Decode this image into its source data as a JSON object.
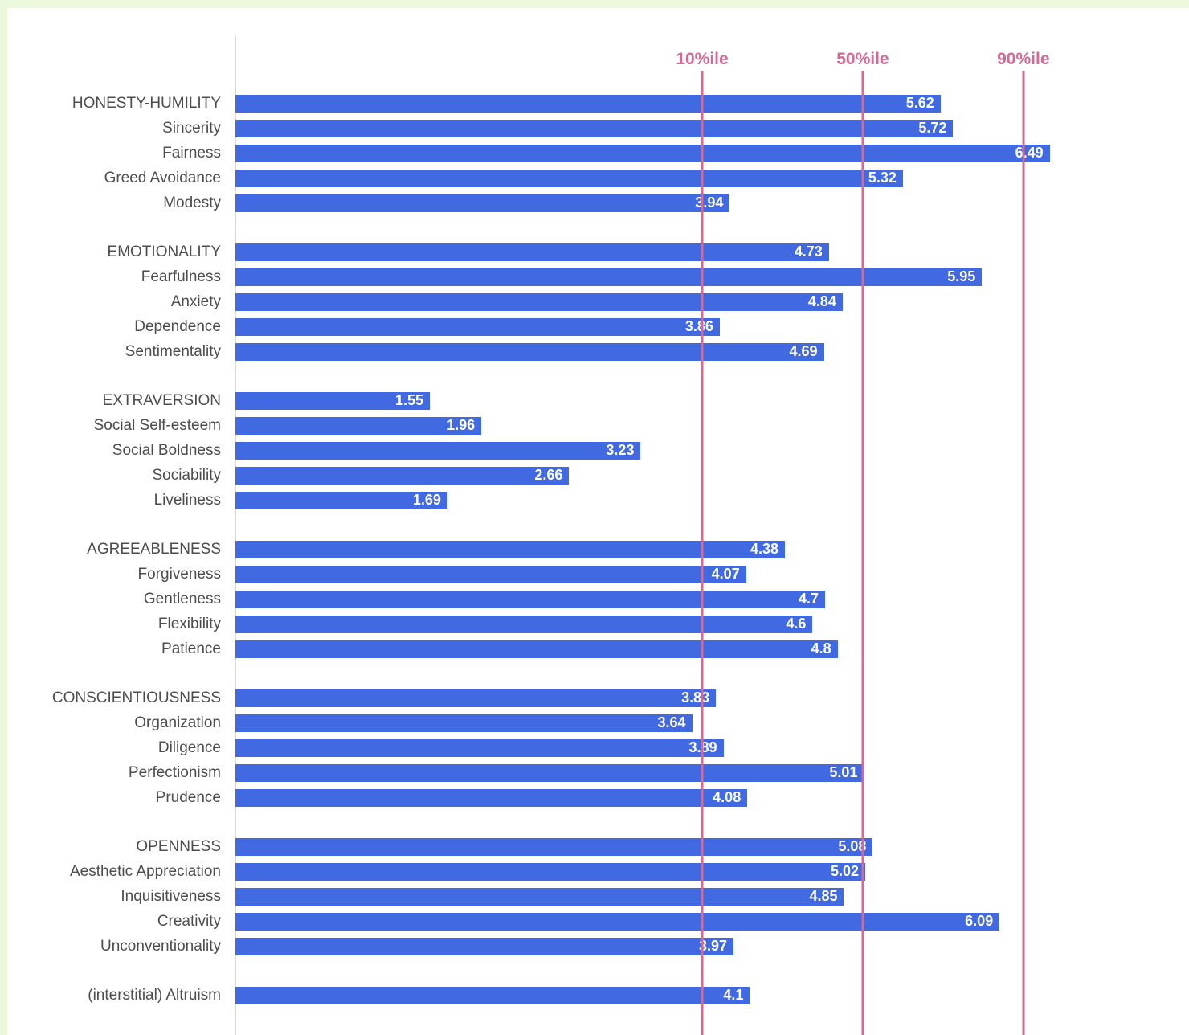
{
  "page": {
    "border_color": "#ecf8dc"
  },
  "chart_data": {
    "type": "bar",
    "orientation": "horizontal",
    "title": "",
    "xlabel": "",
    "ylabel": "",
    "xlim": [
      0,
      7.6
    ],
    "grid": false,
    "bar_color": "#4169e1",
    "line_color": "#d26a93",
    "percentile_lines": [
      {
        "label": "10%ile",
        "x": 3.72
      },
      {
        "label": "50%ile",
        "x": 5.0
      },
      {
        "label": "90%ile",
        "x": 6.28
      }
    ],
    "groups": [
      {
        "rows": [
          {
            "label": "HONESTY-HUMILITY",
            "value": 5.62,
            "facet": true
          },
          {
            "label": "Sincerity",
            "value": 5.72,
            "facet": false
          },
          {
            "label": "Fairness",
            "value": 6.49,
            "facet": false
          },
          {
            "label": "Greed Avoidance",
            "value": 5.32,
            "facet": false
          },
          {
            "label": "Modesty",
            "value": 3.94,
            "facet": false
          }
        ]
      },
      {
        "rows": [
          {
            "label": "EMOTIONALITY",
            "value": 4.73,
            "facet": true
          },
          {
            "label": "Fearfulness",
            "value": 5.95,
            "facet": false
          },
          {
            "label": "Anxiety",
            "value": 4.84,
            "facet": false
          },
          {
            "label": "Dependence",
            "value": 3.86,
            "facet": false
          },
          {
            "label": "Sentimentality",
            "value": 4.69,
            "facet": false
          }
        ]
      },
      {
        "rows": [
          {
            "label": "EXTRAVERSION",
            "value": 1.55,
            "facet": true
          },
          {
            "label": "Social Self-esteem",
            "value": 1.96,
            "facet": false
          },
          {
            "label": "Social Boldness",
            "value": 3.23,
            "facet": false
          },
          {
            "label": "Sociability",
            "value": 2.66,
            "facet": false
          },
          {
            "label": "Liveliness",
            "value": 1.69,
            "facet": false
          }
        ]
      },
      {
        "rows": [
          {
            "label": "AGREEABLENESS",
            "value": 4.38,
            "facet": true
          },
          {
            "label": "Forgiveness",
            "value": 4.07,
            "facet": false
          },
          {
            "label": "Gentleness",
            "value": 4.7,
            "facet": false
          },
          {
            "label": "Flexibility",
            "value": 4.6,
            "facet": false
          },
          {
            "label": "Patience",
            "value": 4.8,
            "facet": false
          }
        ]
      },
      {
        "rows": [
          {
            "label": "CONSCIENTIOUSNESS",
            "value": 3.83,
            "facet": true
          },
          {
            "label": "Organization",
            "value": 3.64,
            "facet": false
          },
          {
            "label": "Diligence",
            "value": 3.89,
            "facet": false
          },
          {
            "label": "Perfectionism",
            "value": 5.01,
            "facet": false
          },
          {
            "label": "Prudence",
            "value": 4.08,
            "facet": false
          }
        ]
      },
      {
        "rows": [
          {
            "label": "OPENNESS",
            "value": 5.08,
            "facet": true
          },
          {
            "label": "Aesthetic Appreciation",
            "value": 5.02,
            "facet": false
          },
          {
            "label": "Inquisitiveness",
            "value": 4.85,
            "facet": false
          },
          {
            "label": "Creativity",
            "value": 6.09,
            "facet": false
          },
          {
            "label": "Unconventionality",
            "value": 3.97,
            "facet": false
          }
        ]
      },
      {
        "rows": [
          {
            "label": "(interstitial) Altruism",
            "value": 4.1,
            "facet": false
          }
        ]
      }
    ]
  }
}
